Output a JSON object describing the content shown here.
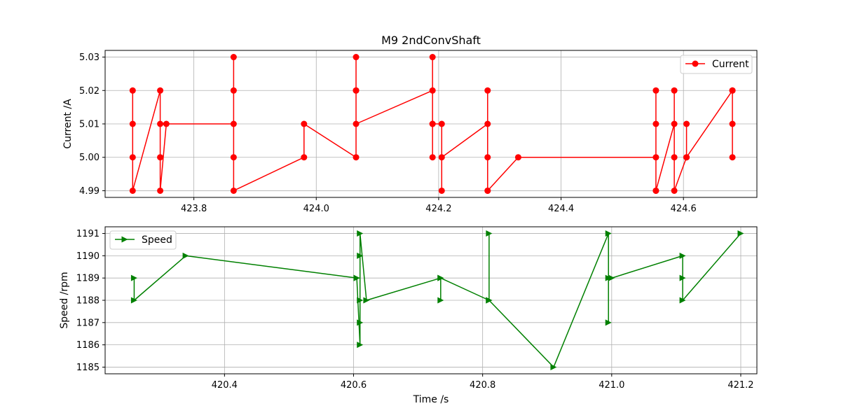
{
  "chart_data": [
    {
      "type": "line",
      "title": "M9 2ndConvShaft",
      "xlabel": "",
      "ylabel": "Current /A",
      "xlim": [
        423.655,
        424.72
      ],
      "ylim": [
        4.988,
        5.032
      ],
      "xticks": [
        423.8,
        424.0,
        424.2,
        424.4,
        424.6
      ],
      "xtick_labels": [
        "423.8",
        "424.0",
        "424.2",
        "424.4",
        "424.6"
      ],
      "yticks": [
        4.99,
        5.0,
        5.01,
        5.02,
        5.03
      ],
      "ytick_labels": [
        "4.99",
        "5.00",
        "5.01",
        "5.02",
        "5.03"
      ],
      "grid": true,
      "legend_position": "upper right",
      "series": [
        {
          "name": "Current",
          "color": "#ff0000",
          "marker": "circle",
          "x": [
            423.7,
            423.7,
            423.7,
            423.7,
            423.745,
            423.745,
            423.745,
            423.745,
            423.755,
            423.865,
            423.865,
            423.865,
            423.865,
            423.865,
            423.98,
            423.98,
            424.065,
            424.065,
            424.065,
            424.065,
            424.065,
            424.19,
            424.19,
            424.19,
            424.19,
            424.19,
            424.205,
            424.205,
            424.205,
            424.28,
            424.28,
            424.28,
            424.28,
            424.28,
            424.33,
            424.555,
            424.555,
            424.555,
            424.555,
            424.555,
            424.585,
            424.585,
            424.585,
            424.585,
            424.605,
            424.605,
            424.605,
            424.68,
            424.68,
            424.68,
            424.68
          ],
          "y": [
            5.02,
            5.01,
            5.0,
            4.99,
            5.02,
            5.01,
            5.0,
            4.99,
            5.01,
            5.01,
            5.03,
            5.02,
            5.0,
            4.99,
            5.0,
            5.01,
            5.0,
            5.03,
            5.02,
            5.02,
            5.01,
            5.02,
            5.03,
            5.01,
            5.0,
            5.01,
            5.01,
            4.99,
            5.0,
            5.01,
            5.02,
            5.0,
            4.99,
            4.99,
            5.0,
            5.0,
            5.02,
            5.01,
            4.99,
            4.99,
            5.01,
            5.02,
            5.0,
            4.99,
            5.0,
            5.01,
            5.0,
            5.02,
            5.01,
            5.0,
            5.02
          ]
        }
      ]
    },
    {
      "type": "line",
      "title": "",
      "xlabel": "Time /s",
      "ylabel": "Speed /rpm",
      "xlim": [
        420.215,
        421.225
      ],
      "ylim": [
        1184.7,
        1191.3
      ],
      "xticks": [
        420.4,
        420.6,
        420.8,
        421.0,
        421.2
      ],
      "xtick_labels": [
        "420.4",
        "420.6",
        "420.8",
        "421.0",
        "421.2"
      ],
      "yticks": [
        1185,
        1186,
        1187,
        1188,
        1189,
        1190,
        1191
      ],
      "ytick_labels": [
        "1185",
        "1186",
        "1187",
        "1188",
        "1189",
        "1190",
        "1191"
      ],
      "grid": true,
      "legend_position": "upper left",
      "series": [
        {
          "name": "Speed",
          "color": "#008000",
          "marker": "triangle-right",
          "x": [
            420.26,
            420.26,
            420.34,
            420.605,
            420.605,
            420.61,
            420.61,
            420.61,
            420.61,
            420.61,
            420.62,
            420.735,
            420.735,
            420.735,
            420.81,
            420.81,
            420.81,
            420.81,
            420.91,
            420.995,
            420.995,
            420.995,
            421.0,
            421.11,
            421.11,
            421.11,
            421.2
          ],
          "y": [
            1189,
            1188,
            1190,
            1189,
            1189,
            1186,
            1187,
            1188,
            1190,
            1191,
            1188,
            1189,
            1188,
            1189,
            1188,
            1191,
            1188,
            1188,
            1185,
            1191,
            1187,
            1189,
            1189,
            1190,
            1189,
            1188,
            1191
          ]
        }
      ]
    }
  ]
}
